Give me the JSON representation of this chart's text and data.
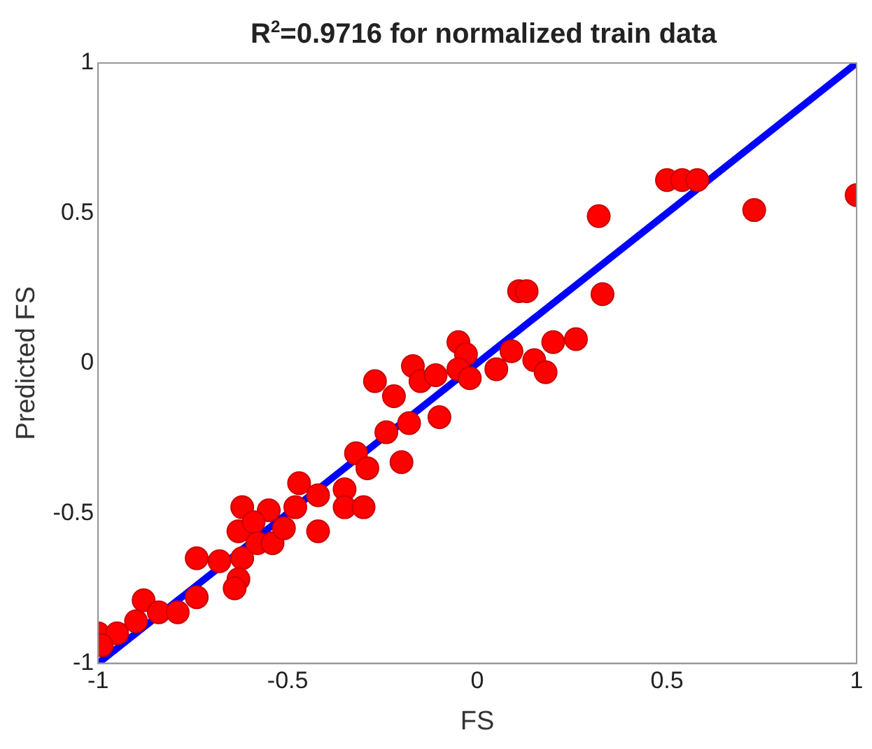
{
  "chart_data": {
    "type": "scatter",
    "title": "R$^{2}$=0.9716 for normalized train data",
    "xlabel": "FS",
    "ylabel": "Predicted FS",
    "xlim": [
      -1,
      1
    ],
    "ylim": [
      -1,
      1
    ],
    "xticks": [
      -1,
      -0.5,
      0,
      0.5,
      1
    ],
    "yticks": [
      -1,
      -0.5,
      0,
      0.5,
      1
    ],
    "grid": false,
    "legend": false,
    "marker": "circle",
    "series": [
      {
        "type": "line",
        "color": "#0000ff",
        "x": [
          -1,
          1
        ],
        "values": [
          -1,
          1
        ],
        "marker": "none",
        "line_style": "solid"
      },
      {
        "color": "#ff0000",
        "x": [
          -1.0,
          -0.95,
          -0.99,
          -0.9,
          -0.88,
          -0.84,
          -0.79,
          -0.74,
          -0.74,
          -0.68,
          -0.62,
          -0.63,
          -0.64,
          -0.62,
          -0.55,
          -0.63,
          -0.59,
          -0.58,
          -0.54,
          -0.51,
          -0.48,
          -0.47,
          -0.42,
          -0.42,
          -0.35,
          -0.35,
          -0.3,
          -0.32,
          -0.29,
          -0.2,
          -0.24,
          -0.27,
          -0.22,
          -0.17,
          -0.15,
          -0.11,
          -0.05,
          -0.03,
          -0.05,
          -0.02,
          0.05,
          0.09,
          0.15,
          0.18,
          0.2,
          0.26,
          -0.1,
          -0.18,
          0.5,
          0.54,
          0.58,
          0.32,
          0.73,
          1.0,
          0.33,
          0.11,
          0.13
        ],
        "values": [
          -0.9,
          -0.9,
          -0.94,
          -0.86,
          -0.79,
          -0.83,
          -0.83,
          -0.78,
          -0.65,
          -0.66,
          -0.65,
          -0.72,
          -0.75,
          -0.48,
          -0.49,
          -0.56,
          -0.53,
          -0.6,
          -0.6,
          -0.55,
          -0.48,
          -0.4,
          -0.56,
          -0.44,
          -0.42,
          -0.48,
          -0.48,
          -0.3,
          -0.35,
          -0.33,
          -0.23,
          -0.06,
          -0.11,
          -0.01,
          -0.06,
          -0.04,
          0.07,
          0.03,
          -0.02,
          -0.05,
          -0.02,
          0.04,
          0.01,
          -0.03,
          0.07,
          0.08,
          -0.18,
          -0.2,
          0.61,
          0.61,
          0.61,
          0.49,
          0.51,
          0.56,
          0.23,
          0.24,
          0.24
        ]
      }
    ]
  }
}
